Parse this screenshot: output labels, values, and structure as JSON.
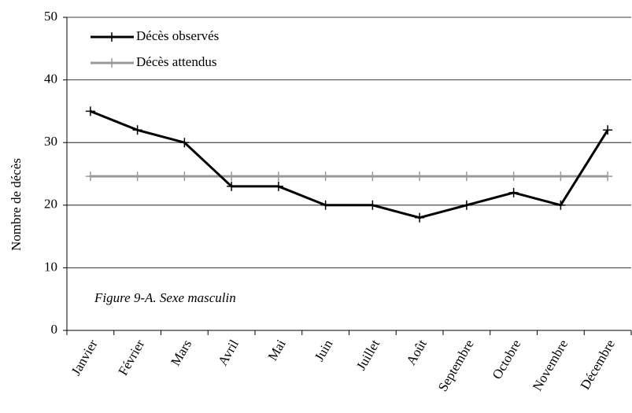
{
  "chart_data": {
    "type": "line",
    "y_label": "Nombre de décès",
    "annotation": "Figure 9-A. Sexe masculin",
    "categories": [
      "Janvier",
      "Février",
      "Mars",
      "Avril",
      "Mai",
      "Juin",
      "Juillet",
      "Août",
      "Septembre",
      "Octobre",
      "Novembre",
      "Décembre"
    ],
    "series": [
      {
        "name": "Décès observés",
        "color": "#000000",
        "values": [
          35,
          32,
          30,
          23,
          23,
          20,
          20,
          18,
          20,
          22,
          20,
          32
        ]
      },
      {
        "name": "Décès attendus",
        "color": "#999999",
        "values": [
          24.6,
          24.6,
          24.6,
          24.6,
          24.6,
          24.6,
          24.6,
          24.6,
          24.6,
          24.6,
          24.6,
          24.6
        ]
      }
    ],
    "ylim": [
      0,
      50
    ],
    "yticks": [
      0,
      10,
      20,
      30,
      40,
      50
    ],
    "grid": true,
    "legend": "top-left"
  }
}
